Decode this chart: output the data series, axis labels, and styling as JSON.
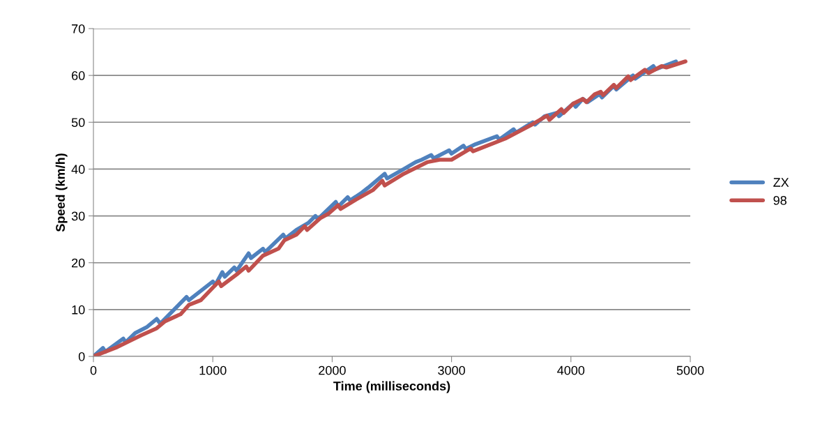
{
  "chart_data": {
    "type": "line",
    "xlabel": "Time (milliseconds)",
    "ylabel": "Speed (km/h)",
    "xlim": [
      0,
      5000
    ],
    "ylim": [
      0,
      70
    ],
    "xticks": [
      0,
      1000,
      2000,
      3000,
      4000,
      5000
    ],
    "yticks": [
      0,
      10,
      20,
      30,
      40,
      50,
      60,
      70
    ],
    "grid": "y",
    "legend": "right",
    "marker": "none",
    "line_style": "solid",
    "series": [
      {
        "name": "ZX",
        "color": "#4f81bd",
        "x": [
          0,
          80,
          100,
          250,
          270,
          350,
          450,
          530,
          560,
          780,
          800,
          1000,
          1020,
          1080,
          1100,
          1180,
          1200,
          1300,
          1320,
          1420,
          1440,
          1590,
          1610,
          1700,
          1800,
          1860,
          1880,
          2030,
          2050,
          2130,
          2150,
          2250,
          2300,
          2440,
          2460,
          2600,
          2700,
          2750,
          2830,
          2850,
          2980,
          3000,
          3100,
          3120,
          3200,
          3380,
          3400,
          3520,
          3540,
          3680,
          3700,
          3780,
          3880,
          3900,
          4020,
          4040,
          4100,
          4140,
          4240,
          4260,
          4360,
          4380,
          4520,
          4540,
          4690,
          4710,
          4880
        ],
        "values": [
          0,
          1.8,
          1.0,
          3.8,
          3,
          5,
          6.3,
          8,
          7,
          12.7,
          12,
          16,
          15.2,
          18,
          17,
          19,
          18.3,
          22,
          21,
          23,
          22.3,
          26,
          25.2,
          27,
          28.5,
          30,
          29.3,
          33,
          32,
          34,
          33.3,
          35,
          36,
          39,
          38,
          40,
          41.5,
          42,
          43,
          42.3,
          44,
          43.3,
          45,
          44.3,
          45.3,
          47,
          46.3,
          48.5,
          47.8,
          50,
          49.5,
          51.3,
          52,
          51.3,
          54,
          53.3,
          55,
          54.3,
          56,
          55.3,
          57.8,
          57,
          60,
          59.3,
          62,
          61.3,
          63
        ]
      },
      {
        "name": "98",
        "color": "#c0504d",
        "x": [
          0,
          200,
          400,
          530,
          600,
          730,
          800,
          900,
          1050,
          1070,
          1200,
          1280,
          1300,
          1420,
          1550,
          1600,
          1700,
          1770,
          1790,
          1900,
          1970,
          2050,
          2070,
          2200,
          2340,
          2420,
          2440,
          2600,
          2800,
          2900,
          3000,
          3160,
          3180,
          3280,
          3450,
          3600,
          3680,
          3800,
          3820,
          3920,
          3940,
          4020,
          4100,
          4130,
          4200,
          4250,
          4270,
          4360,
          4380,
          4480,
          4500,
          4620,
          4650,
          4760,
          4800,
          4960
        ],
        "values": [
          0,
          2,
          4.5,
          6,
          7.5,
          9,
          11,
          12,
          16,
          15,
          17.5,
          19.2,
          18.3,
          21.5,
          23,
          24.8,
          26,
          27.8,
          27,
          29.5,
          30.5,
          32.3,
          31.5,
          33.5,
          35.5,
          37.5,
          36.5,
          39,
          41.5,
          42,
          42,
          44.4,
          43.8,
          44.8,
          46.5,
          48.5,
          49.6,
          51.4,
          50.5,
          52.8,
          52,
          54,
          55,
          54.3,
          56,
          56.5,
          55.8,
          58,
          57.3,
          59.8,
          59,
          61.2,
          60.5,
          62,
          61.7,
          63
        ]
      }
    ]
  }
}
